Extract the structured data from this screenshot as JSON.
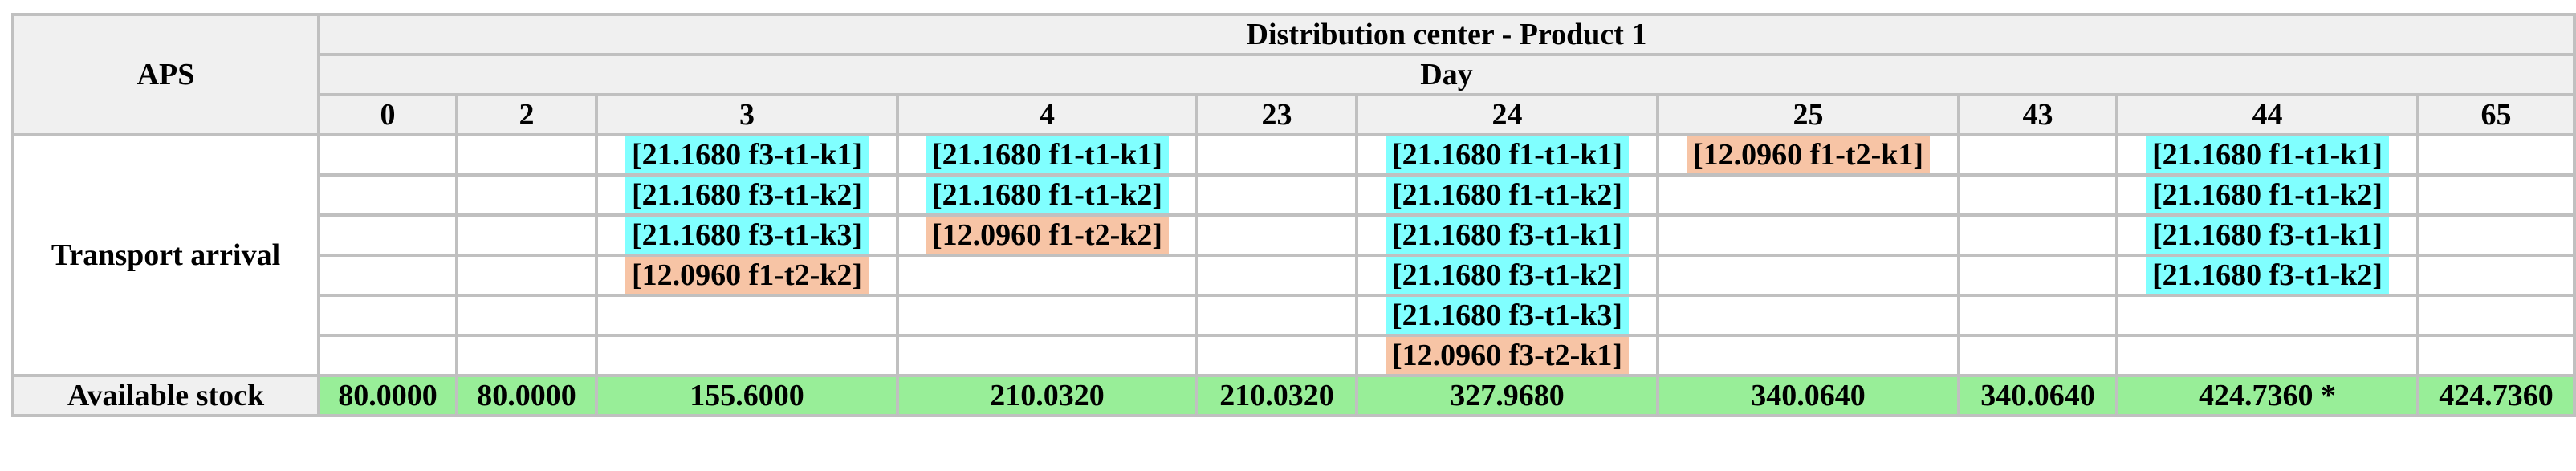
{
  "header": {
    "corner": "APS",
    "title": "Distribution center - Product 1",
    "subtitle": "Day",
    "days": [
      "0",
      "2",
      "3",
      "4",
      "23",
      "24",
      "25",
      "43",
      "44",
      "65"
    ]
  },
  "transport": {
    "label": "Transport arrival",
    "rows": [
      [
        null,
        null,
        {
          "text": "[21.1680 f3-t1-k1]",
          "color": "#80ffff"
        },
        {
          "text": "[21.1680 f1-t1-k1]",
          "color": "#80ffff"
        },
        null,
        {
          "text": "[21.1680 f1-t1-k1]",
          "color": "#80ffff"
        },
        {
          "text": "[12.0960 f1-t2-k1]",
          "color": "#f7c4a5"
        },
        null,
        {
          "text": "[21.1680 f1-t1-k1]",
          "color": "#80ffff"
        },
        null
      ],
      [
        null,
        null,
        {
          "text": "[21.1680 f3-t1-k2]",
          "color": "#80ffff"
        },
        {
          "text": "[21.1680 f1-t1-k2]",
          "color": "#80ffff"
        },
        null,
        {
          "text": "[21.1680 f1-t1-k2]",
          "color": "#80ffff"
        },
        null,
        null,
        {
          "text": "[21.1680 f1-t1-k2]",
          "color": "#80ffff"
        },
        null
      ],
      [
        null,
        null,
        {
          "text": "[21.1680 f3-t1-k3]",
          "color": "#80ffff"
        },
        {
          "text": "[12.0960 f1-t2-k2]",
          "color": "#f7c4a5"
        },
        null,
        {
          "text": "[21.1680 f3-t1-k1]",
          "color": "#80ffff"
        },
        null,
        null,
        {
          "text": "[21.1680 f3-t1-k1]",
          "color": "#80ffff"
        },
        null
      ],
      [
        null,
        null,
        {
          "text": "[12.0960 f1-t2-k2]",
          "color": "#f7c4a5"
        },
        null,
        null,
        {
          "text": "[21.1680 f3-t1-k2]",
          "color": "#80ffff"
        },
        null,
        null,
        {
          "text": "[21.1680 f3-t1-k2]",
          "color": "#80ffff"
        },
        null
      ],
      [
        null,
        null,
        null,
        null,
        null,
        {
          "text": "[21.1680 f3-t1-k3]",
          "color": "#80ffff"
        },
        null,
        null,
        null,
        null
      ],
      [
        null,
        null,
        null,
        null,
        null,
        {
          "text": "[12.0960 f3-t2-k1]",
          "color": "#f7c4a5"
        },
        null,
        null,
        null,
        null
      ]
    ]
  },
  "stock": {
    "label": "Available stock",
    "color": "#98ee98",
    "values": [
      "80.0000",
      "80.0000",
      "155.6000",
      "210.0320",
      "210.0320",
      "327.9680",
      "340.0640",
      "340.0640",
      "424.7360 *",
      "424.7360"
    ]
  }
}
